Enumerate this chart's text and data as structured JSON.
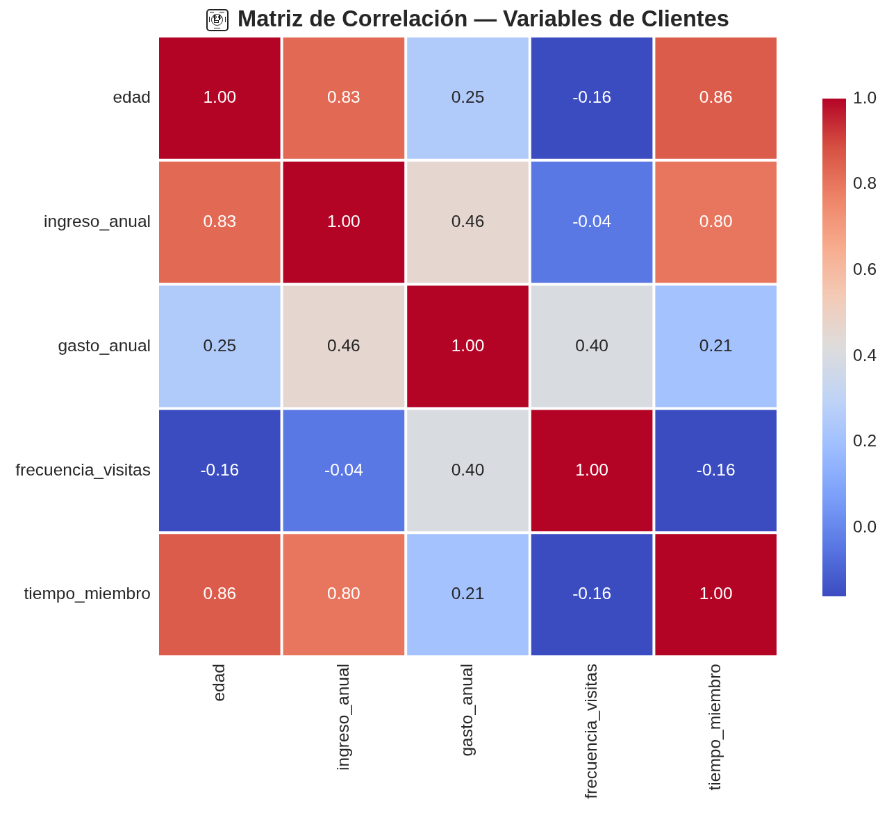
{
  "chart_data": {
    "type": "heatmap",
    "title": "Matriz de Correlación — Variables de Clientes",
    "categories": [
      "edad",
      "ingreso_anual",
      "gasto_anual",
      "frecuencia_visitas",
      "tiempo_miembro"
    ],
    "y_categories": [
      "edad",
      "ingreso_anual",
      "gasto_anual",
      "frecuencia_visitas",
      "tiempo_miembro"
    ],
    "cells": [
      [
        1.0,
        0.83,
        0.25,
        -0.16,
        0.86
      ],
      [
        0.83,
        1.0,
        0.46,
        -0.04,
        0.8
      ],
      [
        0.25,
        0.46,
        1.0,
        0.4,
        0.21
      ],
      [
        -0.16,
        -0.04,
        0.4,
        1.0,
        -0.16
      ],
      [
        0.86,
        0.8,
        0.21,
        -0.16,
        1.0
      ]
    ],
    "cell_labels": [
      [
        "1.00",
        "0.83",
        "0.25",
        "-0.16",
        "0.86"
      ],
      [
        "0.83",
        "1.00",
        "0.46",
        "-0.04",
        "0.80"
      ],
      [
        "0.25",
        "0.46",
        "1.00",
        "0.40",
        "0.21"
      ],
      [
        "-0.16",
        "-0.04",
        "0.40",
        "1.00",
        "-0.16"
      ],
      [
        "0.86",
        "0.80",
        "0.21",
        "-0.16",
        "1.00"
      ]
    ],
    "clim": [
      -0.16,
      1.0
    ],
    "cticks": [
      {
        "value": 0,
        "label": "0.0"
      },
      0.2,
      0.4,
      0.6,
      0.8,
      {
        "value": 1,
        "label": "1.0"
      }
    ]
  }
}
